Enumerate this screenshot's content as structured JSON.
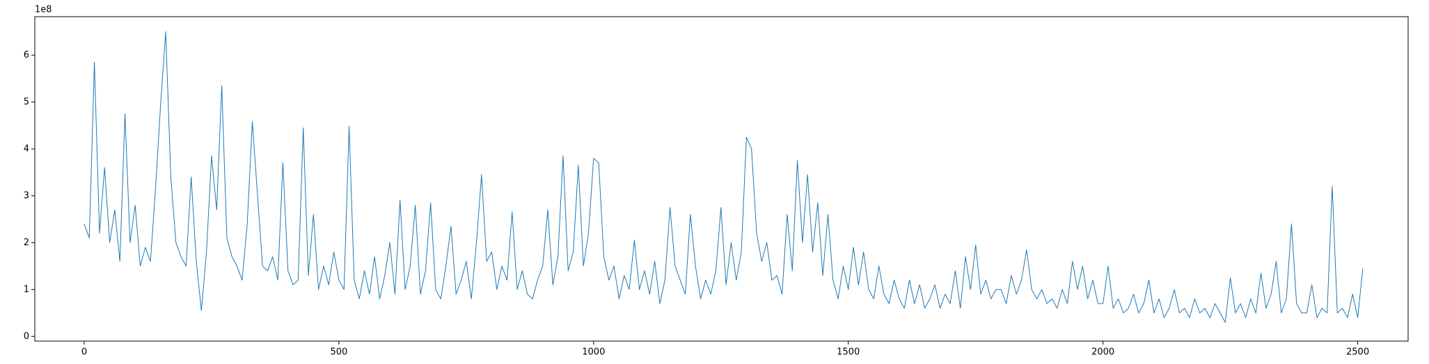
{
  "chart_data": {
    "type": "line",
    "y_offset_label": "1e8",
    "color": "#1f77b4",
    "xlim": [
      -97,
      2599
    ],
    "ylim": [
      -0.1,
      6.82
    ],
    "xticks": [
      0,
      500,
      1000,
      1500,
      2000,
      2500
    ],
    "yticks": [
      0,
      1,
      2,
      3,
      4,
      5,
      6
    ],
    "x": [
      0,
      10,
      20,
      30,
      40,
      50,
      60,
      70,
      80,
      90,
      100,
      110,
      120,
      130,
      140,
      150,
      160,
      170,
      180,
      190,
      200,
      210,
      220,
      230,
      240,
      250,
      260,
      270,
      280,
      290,
      300,
      310,
      320,
      330,
      340,
      350,
      360,
      370,
      380,
      390,
      400,
      410,
      420,
      430,
      440,
      450,
      460,
      470,
      480,
      490,
      500,
      510,
      520,
      530,
      540,
      550,
      560,
      570,
      580,
      590,
      600,
      610,
      620,
      630,
      640,
      650,
      660,
      670,
      680,
      690,
      700,
      710,
      720,
      730,
      740,
      750,
      760,
      770,
      780,
      790,
      800,
      810,
      820,
      830,
      840,
      850,
      860,
      870,
      880,
      890,
      900,
      910,
      920,
      930,
      940,
      950,
      960,
      970,
      980,
      990,
      1000,
      1010,
      1020,
      1030,
      1040,
      1050,
      1060,
      1070,
      1080,
      1090,
      1100,
      1110,
      1120,
      1130,
      1140,
      1150,
      1160,
      1170,
      1180,
      1190,
      1200,
      1210,
      1220,
      1230,
      1240,
      1250,
      1260,
      1270,
      1280,
      1290,
      1300,
      1310,
      1320,
      1330,
      1340,
      1350,
      1360,
      1370,
      1380,
      1390,
      1400,
      1410,
      1420,
      1430,
      1440,
      1450,
      1460,
      1470,
      1480,
      1490,
      1500,
      1510,
      1520,
      1530,
      1540,
      1550,
      1560,
      1570,
      1580,
      1590,
      1600,
      1610,
      1620,
      1630,
      1640,
      1650,
      1660,
      1670,
      1680,
      1690,
      1700,
      1710,
      1720,
      1730,
      1740,
      1750,
      1760,
      1770,
      1780,
      1790,
      1800,
      1810,
      1820,
      1830,
      1840,
      1850,
      1860,
      1870,
      1880,
      1890,
      1900,
      1910,
      1920,
      1930,
      1940,
      1950,
      1960,
      1970,
      1980,
      1990,
      2000,
      2010,
      2020,
      2030,
      2040,
      2050,
      2060,
      2070,
      2080,
      2090,
      2100,
      2110,
      2120,
      2130,
      2140,
      2150,
      2160,
      2170,
      2180,
      2190,
      2200,
      2210,
      2220,
      2230,
      2240,
      2250,
      2260,
      2270,
      2280,
      2290,
      2300,
      2310,
      2320,
      2330,
      2340,
      2350,
      2360,
      2370,
      2380,
      2390,
      2400,
      2410,
      2420,
      2430,
      2440,
      2450,
      2460,
      2470,
      2480,
      2490,
      2500,
      2510
    ],
    "values": [
      2.4,
      2.1,
      5.85,
      2.2,
      3.6,
      2.0,
      2.7,
      1.6,
      4.75,
      2.0,
      2.8,
      1.5,
      1.9,
      1.6,
      3.15,
      4.95,
      6.5,
      3.4,
      2.0,
      1.7,
      1.5,
      3.4,
      1.6,
      0.55,
      1.8,
      3.85,
      2.7,
      5.35,
      2.1,
      1.7,
      1.5,
      1.2,
      2.4,
      4.58,
      3.05,
      1.5,
      1.4,
      1.7,
      1.2,
      3.7,
      1.4,
      1.1,
      1.2,
      4.45,
      1.3,
      2.6,
      1.0,
      1.5,
      1.1,
      1.8,
      1.2,
      1.0,
      4.48,
      1.2,
      0.8,
      1.4,
      0.9,
      1.7,
      0.8,
      1.3,
      2.0,
      0.9,
      2.9,
      1.0,
      1.5,
      2.8,
      0.9,
      1.4,
      2.85,
      1.0,
      0.8,
      1.5,
      2.35,
      0.9,
      1.2,
      1.6,
      0.8,
      2.0,
      3.45,
      1.6,
      1.8,
      1.0,
      1.5,
      1.2,
      2.65,
      1.0,
      1.4,
      0.9,
      0.8,
      1.2,
      1.5,
      2.7,
      1.1,
      1.7,
      3.85,
      1.4,
      1.8,
      3.65,
      1.5,
      2.2,
      3.8,
      3.7,
      1.7,
      1.2,
      1.5,
      0.8,
      1.3,
      1.0,
      2.05,
      1.0,
      1.4,
      0.9,
      1.6,
      0.7,
      1.2,
      2.75,
      1.5,
      1.2,
      0.9,
      2.6,
      1.5,
      0.8,
      1.2,
      0.9,
      1.4,
      2.75,
      1.1,
      2.0,
      1.2,
      1.8,
      4.25,
      4.0,
      2.2,
      1.6,
      2.0,
      1.2,
      1.3,
      0.9,
      2.6,
      1.4,
      3.75,
      2.0,
      3.45,
      1.8,
      2.85,
      1.3,
      2.6,
      1.2,
      0.8,
      1.5,
      1.0,
      1.9,
      1.1,
      1.8,
      1.0,
      0.8,
      1.5,
      0.9,
      0.7,
      1.2,
      0.8,
      0.6,
      1.2,
      0.7,
      1.1,
      0.6,
      0.8,
      1.1,
      0.6,
      0.9,
      0.7,
      1.4,
      0.6,
      1.7,
      1.0,
      1.95,
      0.9,
      1.2,
      0.8,
      1.0,
      1.0,
      0.7,
      1.3,
      0.9,
      1.2,
      1.85,
      1.0,
      0.8,
      1.0,
      0.7,
      0.8,
      0.6,
      1.0,
      0.7,
      1.6,
      1.0,
      1.5,
      0.8,
      1.2,
      0.7,
      0.7,
      1.5,
      0.6,
      0.8,
      0.5,
      0.6,
      0.9,
      0.5,
      0.7,
      1.2,
      0.5,
      0.8,
      0.4,
      0.6,
      1.0,
      0.5,
      0.6,
      0.4,
      0.8,
      0.5,
      0.6,
      0.4,
      0.7,
      0.5,
      0.3,
      1.25,
      0.5,
      0.7,
      0.4,
      0.8,
      0.5,
      1.35,
      0.6,
      0.9,
      1.6,
      0.5,
      0.8,
      2.4,
      0.7,
      0.5,
      0.5,
      1.1,
      0.4,
      0.6,
      0.5,
      3.2,
      0.5,
      0.6,
      0.4,
      0.9,
      0.4,
      1.45
    ]
  }
}
